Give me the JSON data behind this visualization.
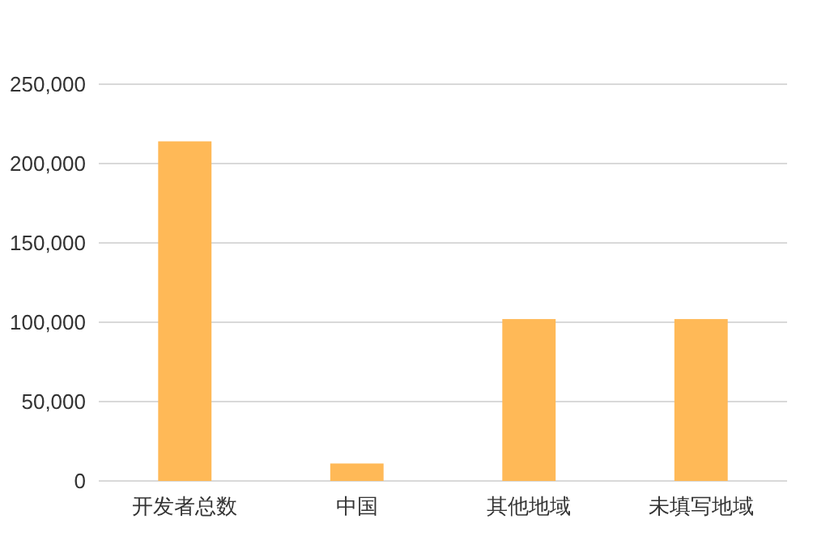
{
  "chart_data": {
    "type": "bar",
    "categories": [
      "开发者总数",
      "中国",
      "其他地域",
      "未填写地域"
    ],
    "values": [
      214000,
      11000,
      102000,
      102000
    ],
    "color": "#ffb957",
    "ylim": [
      0,
      250000
    ],
    "yticks": [
      {
        "value": 0,
        "label": "0"
      },
      {
        "value": 50000,
        "label": "50,000"
      },
      {
        "value": 100000,
        "label": "100,000"
      },
      {
        "value": 150000,
        "label": "150,000"
      },
      {
        "value": 200000,
        "label": "200,000"
      },
      {
        "value": 250000,
        "label": "250,000"
      }
    ],
    "grid": "y",
    "legend": false
  }
}
